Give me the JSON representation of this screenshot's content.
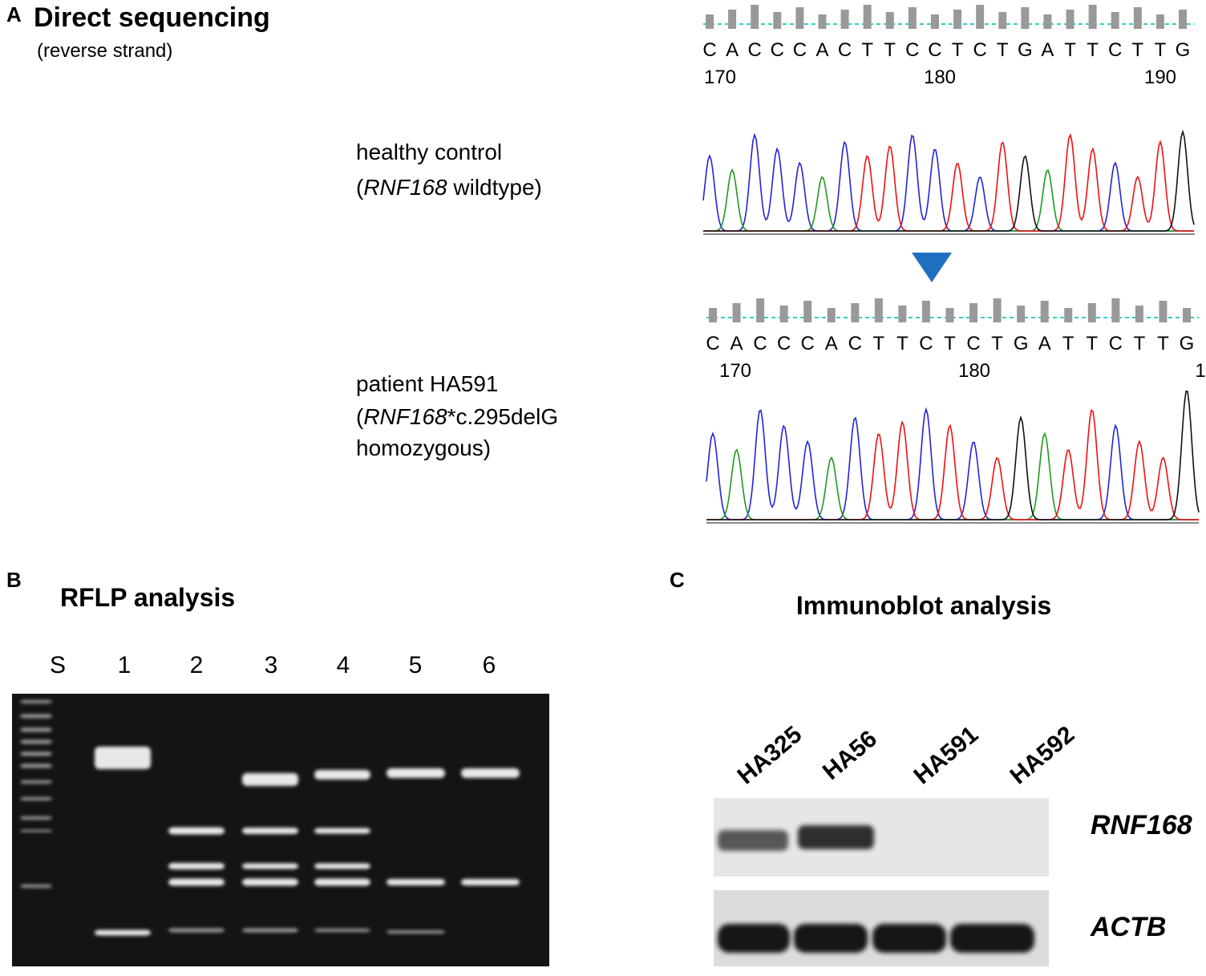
{
  "panel_a": {
    "label": "A",
    "title": "Direct sequencing",
    "subtitle": "(reverse strand)",
    "control": {
      "line1": "healthy control",
      "open": "(",
      "gene": "RNF168",
      "rest": " wildtype)"
    },
    "patient": {
      "line1": "patient HA591",
      "open": "(",
      "gene": "RNF168",
      "rest": "*c.295delG",
      "line3": "homozygous)"
    },
    "trace_control": {
      "bases": [
        "C",
        "A",
        "C",
        "C",
        "C",
        "A",
        "C",
        "T",
        "T",
        "C",
        "C",
        "T",
        "C",
        "T",
        "G",
        "A",
        "T",
        "T",
        "C",
        "T",
        "T",
        "G"
      ],
      "positions": [
        "170",
        "180",
        "190"
      ]
    },
    "trace_patient": {
      "bases": [
        "C",
        "A",
        "C",
        "C",
        "C",
        "A",
        "C",
        "T",
        "T",
        "C",
        "T",
        "C",
        "T",
        "G",
        "A",
        "T",
        "T",
        "C",
        "T",
        "T",
        "G"
      ],
      "positions": [
        "170",
        "180",
        "1"
      ]
    }
  },
  "panel_b": {
    "label": "B",
    "title": "RFLP analysis",
    "lanes": [
      "S",
      "1",
      "2",
      "3",
      "4",
      "5",
      "6"
    ]
  },
  "panel_c": {
    "label": "C",
    "title": "Immunoblot analysis",
    "samples": [
      "HA325",
      "HA56",
      "HA591",
      "HA592"
    ],
    "proteins": [
      "RNF168",
      "ACTB"
    ]
  }
}
